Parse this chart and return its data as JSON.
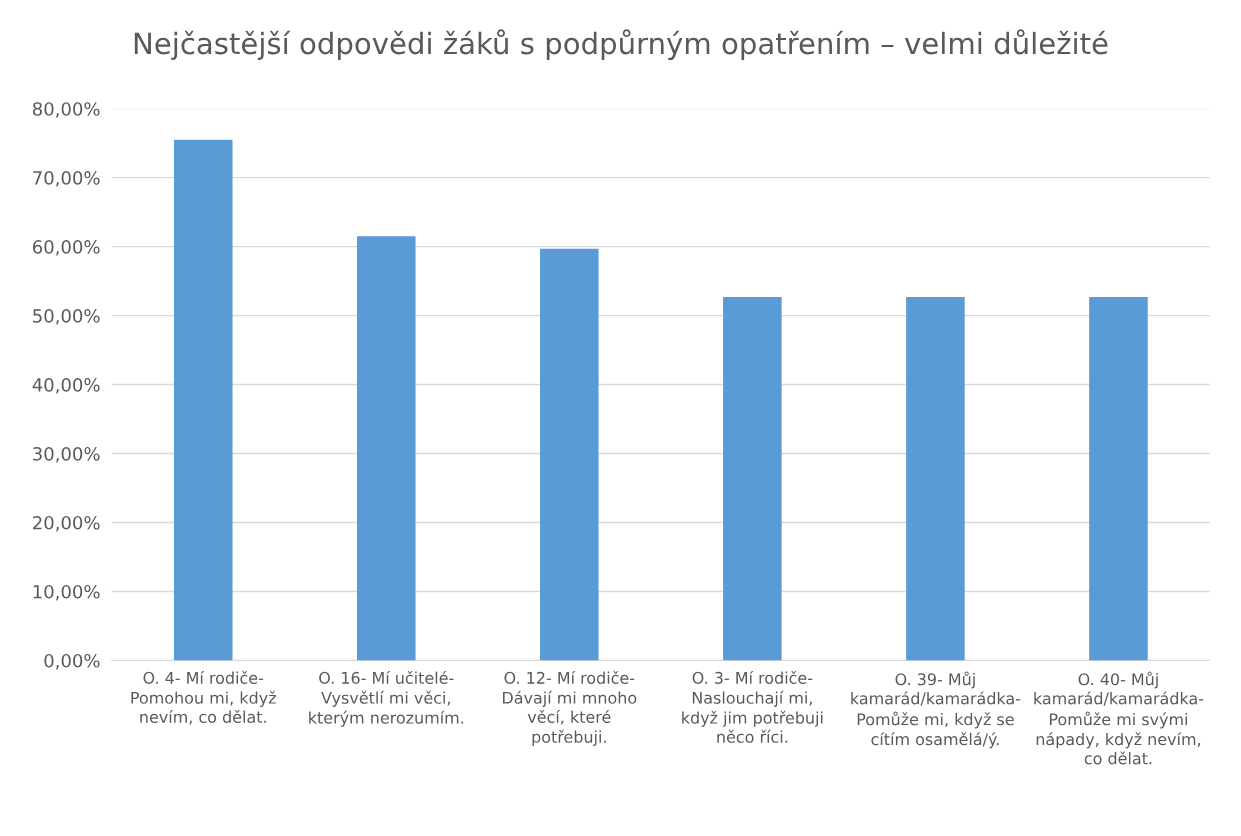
{
  "chart_data": {
    "type": "bar",
    "title": "Nejčastější odpovědi žáků s podpůrným opatřením – velmi důležité",
    "categories": [
      "O. 4- Mí rodiče-Pomohou mi, když nevím, co dělat.",
      "O. 16- Mí učitelé-Vysvětlí mi věci, kterým nerozumím.",
      "O. 12- Mí rodiče-Dávají mi mnoho věcí, které potřebuji.",
      "O. 3- Mí rodiče-Naslouchají mi, když jim potřebuji něco říci.",
      "O. 39- Můj kamarád/kamarádka-Pomůže mi, když se cítím osamělá/ý.",
      "O. 40- Můj kamarád/kamarádka-Pomůže mi svými nápady, když nevím, co dělat."
    ],
    "values": [
      75.5,
      61.5,
      59.7,
      52.7,
      52.7,
      52.7
    ],
    "color": "#5b9bd5",
    "ylim": [
      0,
      80
    ],
    "yticks": [
      {
        "value": 0,
        "label": "0,00%"
      },
      {
        "value": 10,
        "label": "10,00%"
      },
      {
        "value": 20,
        "label": "20,00%"
      },
      {
        "value": 30,
        "label": "30,00%"
      },
      {
        "value": 40,
        "label": "40,00%"
      },
      {
        "value": 50,
        "label": "50,00%"
      },
      {
        "value": 60,
        "label": "60,00%"
      },
      {
        "value": 70,
        "label": "70,00%"
      },
      {
        "value": 80,
        "label": "80,00%"
      }
    ],
    "grid": "y"
  }
}
